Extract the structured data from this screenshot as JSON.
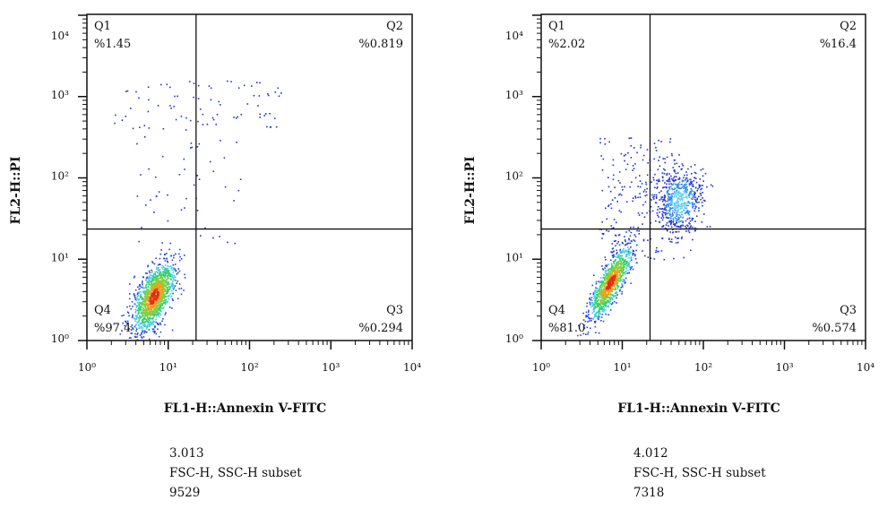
{
  "chart_data": [
    {
      "type": "scatter",
      "xlabel": "FL1-H::Annexin V-FITC",
      "ylabel": "FL2-H::PI",
      "xscale": "log",
      "yscale": "log",
      "xlim": [
        1,
        10000
      ],
      "ylim": [
        1,
        10000
      ],
      "x_ticks": [
        "10⁰",
        "10¹",
        "10²",
        "10³",
        "10⁴"
      ],
      "y_ticks": [
        "10⁰",
        "10¹",
        "10²",
        "10³",
        "10⁴"
      ],
      "gates": {
        "x": 22,
        "y": 23.5
      },
      "quadrants": [
        {
          "name": "Q1",
          "value": "%1.45"
        },
        {
          "name": "Q2",
          "value": "%0.819"
        },
        {
          "name": "Q3",
          "value": "%0.294"
        },
        {
          "name": "Q4",
          "value": "%97.4"
        }
      ],
      "populations_log10": [
        {
          "kind": "gaussian",
          "cx": 0.82,
          "cy": 0.55,
          "sx": 0.13,
          "sy": 0.21,
          "corr": 0.6,
          "n": 1400,
          "hot": true
        },
        {
          "kind": "uniform",
          "x": [
            0.3,
            2.4
          ],
          "y": [
            2.6,
            3.2
          ],
          "n": 80
        },
        {
          "kind": "uniform",
          "x": [
            0.6,
            1.9
          ],
          "y": [
            1.2,
            2.6
          ],
          "n": 50
        }
      ],
      "stats": {
        "line1": "3.013",
        "line2": "FSC-H, SSC-H subset",
        "line3": "9529"
      }
    },
    {
      "type": "scatter",
      "xlabel": "FL1-H::Annexin V-FITC",
      "ylabel": "FL2-H::PI",
      "xscale": "log",
      "yscale": "log",
      "xlim": [
        1,
        10000
      ],
      "ylim": [
        1,
        10000
      ],
      "x_ticks": [
        "10⁰",
        "10¹",
        "10²",
        "10³",
        "10⁴"
      ],
      "y_ticks": [
        "10⁰",
        "10¹",
        "10²",
        "10³",
        "10⁴"
      ],
      "gates": {
        "x": 22,
        "y": 23.5
      },
      "quadrants": [
        {
          "name": "Q1",
          "value": "%2.02"
        },
        {
          "name": "Q2",
          "value": "%16.4"
        },
        {
          "name": "Q3",
          "value": "%0.574"
        },
        {
          "name": "Q4",
          "value": "%81.0"
        }
      ],
      "populations_log10": [
        {
          "kind": "gaussian",
          "cx": 0.85,
          "cy": 0.72,
          "sx": 0.13,
          "sy": 0.22,
          "corr": 0.8,
          "n": 1100,
          "hot": true
        },
        {
          "kind": "gaussian",
          "cx": 1.7,
          "cy": 1.72,
          "sx": 0.14,
          "sy": 0.2,
          "corr": 0.1,
          "n": 600,
          "hot": false
        },
        {
          "kind": "uniform",
          "x": [
            0.7,
            1.65
          ],
          "y": [
            1.0,
            2.5
          ],
          "n": 220
        }
      ],
      "stats": {
        "line1": "4.012",
        "line2": "FSC-H, SSC-H subset",
        "line3": "7318"
      }
    }
  ]
}
